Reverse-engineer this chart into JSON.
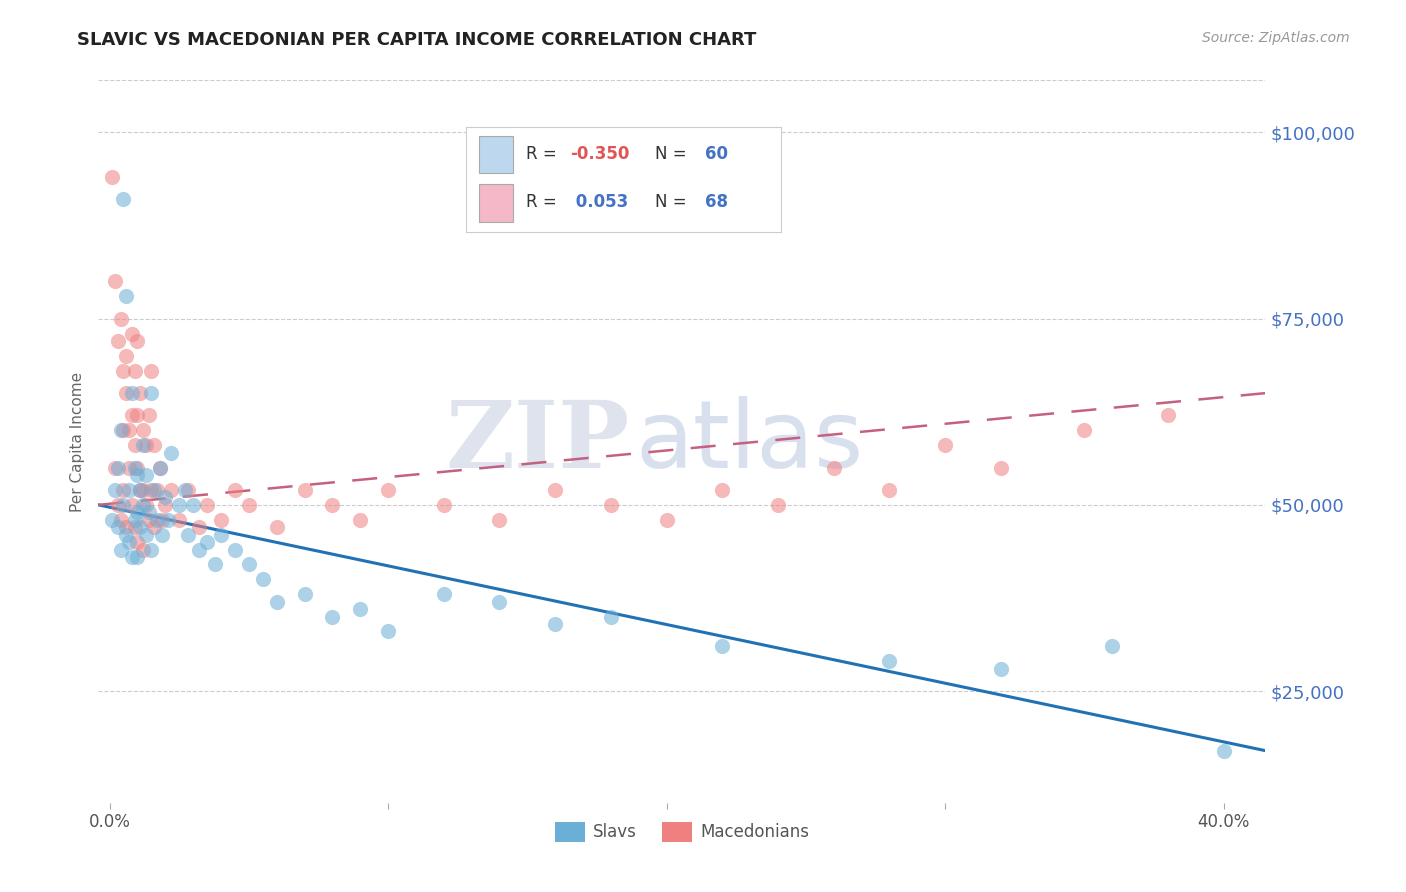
{
  "title": "SLAVIC VS MACEDONIAN PER CAPITA INCOME CORRELATION CHART",
  "source_text": "Source: ZipAtlas.com",
  "ylabel": "Per Capita Income",
  "x_min": -0.004,
  "x_max": 0.415,
  "y_min": 10000,
  "y_max": 107000,
  "x_ticks": [
    0.0,
    0.1,
    0.2,
    0.3,
    0.4
  ],
  "x_tick_labels": [
    "0.0%",
    "",
    "",
    "",
    "40.0%"
  ],
  "y_ticks": [
    25000,
    50000,
    75000,
    100000
  ],
  "y_tick_labels": [
    "$25,000",
    "$50,000",
    "$75,000",
    "$100,000"
  ],
  "slavs_scatter_color": "#6baed6",
  "macedonians_scatter_color": "#f08080",
  "slavs_line_color": "#2171b5",
  "macedonians_line_color": "#c46080",
  "legend_box_slavs": "#bdd7ee",
  "legend_box_macedonians": "#f4b8c8",
  "R_slavs": -0.35,
  "N_slavs": 60,
  "R_macedonians": 0.053,
  "N_macedonians": 68,
  "grid_color": "#cccccc",
  "slavs_x": [
    0.001,
    0.002,
    0.003,
    0.003,
    0.004,
    0.004,
    0.005,
    0.005,
    0.006,
    0.006,
    0.007,
    0.007,
    0.008,
    0.008,
    0.009,
    0.009,
    0.01,
    0.01,
    0.01,
    0.011,
    0.011,
    0.012,
    0.012,
    0.013,
    0.013,
    0.014,
    0.015,
    0.015,
    0.016,
    0.017,
    0.018,
    0.019,
    0.02,
    0.021,
    0.022,
    0.025,
    0.027,
    0.028,
    0.03,
    0.032,
    0.035,
    0.038,
    0.04,
    0.045,
    0.05,
    0.055,
    0.06,
    0.07,
    0.08,
    0.09,
    0.1,
    0.12,
    0.14,
    0.16,
    0.18,
    0.22,
    0.28,
    0.32,
    0.36,
    0.4
  ],
  "slavs_y": [
    48000,
    52000,
    55000,
    47000,
    60000,
    44000,
    91000,
    50000,
    78000,
    46000,
    52000,
    45000,
    65000,
    43000,
    55000,
    48000,
    54000,
    49000,
    43000,
    52000,
    47000,
    58000,
    50000,
    46000,
    54000,
    49000,
    65000,
    44000,
    52000,
    48000,
    55000,
    46000,
    51000,
    48000,
    57000,
    50000,
    52000,
    46000,
    50000,
    44000,
    45000,
    42000,
    46000,
    44000,
    42000,
    40000,
    37000,
    38000,
    35000,
    36000,
    33000,
    38000,
    37000,
    34000,
    35000,
    31000,
    29000,
    28000,
    31000,
    17000
  ],
  "macedonians_x": [
    0.001,
    0.002,
    0.002,
    0.003,
    0.003,
    0.004,
    0.004,
    0.005,
    0.005,
    0.005,
    0.006,
    0.006,
    0.006,
    0.007,
    0.007,
    0.008,
    0.008,
    0.008,
    0.009,
    0.009,
    0.009,
    0.01,
    0.01,
    0.01,
    0.01,
    0.011,
    0.011,
    0.012,
    0.012,
    0.012,
    0.013,
    0.013,
    0.014,
    0.014,
    0.015,
    0.015,
    0.016,
    0.016,
    0.017,
    0.018,
    0.019,
    0.02,
    0.022,
    0.025,
    0.028,
    0.032,
    0.035,
    0.04,
    0.045,
    0.05,
    0.06,
    0.07,
    0.08,
    0.09,
    0.1,
    0.12,
    0.14,
    0.16,
    0.18,
    0.2,
    0.22,
    0.24,
    0.26,
    0.28,
    0.3,
    0.32,
    0.35,
    0.38
  ],
  "macedonians_y": [
    94000,
    80000,
    55000,
    72000,
    50000,
    75000,
    48000,
    68000,
    60000,
    52000,
    70000,
    65000,
    47000,
    60000,
    55000,
    73000,
    62000,
    50000,
    68000,
    58000,
    47000,
    72000,
    62000,
    55000,
    45000,
    65000,
    52000,
    60000,
    52000,
    44000,
    58000,
    50000,
    62000,
    48000,
    68000,
    52000,
    58000,
    47000,
    52000,
    55000,
    48000,
    50000,
    52000,
    48000,
    52000,
    47000,
    50000,
    48000,
    52000,
    50000,
    47000,
    52000,
    50000,
    48000,
    52000,
    50000,
    48000,
    52000,
    50000,
    48000,
    52000,
    50000,
    55000,
    52000,
    58000,
    55000,
    60000,
    62000
  ]
}
